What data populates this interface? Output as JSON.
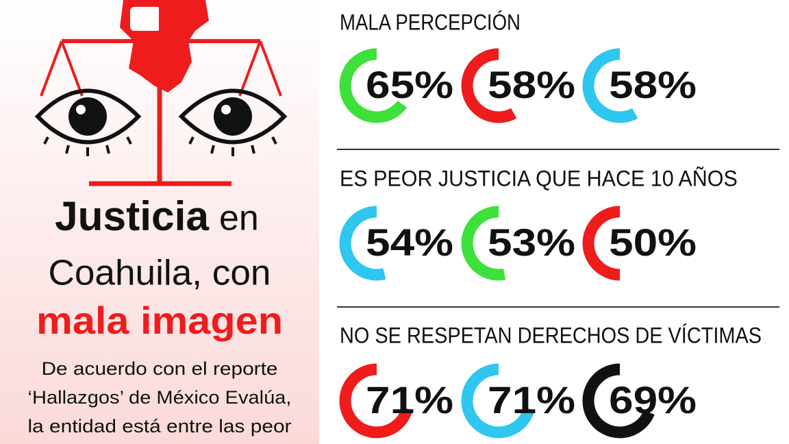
{
  "headline": {
    "part1": "Justicia",
    "part2": "en",
    "line2": "Coahuila, con",
    "line3": "mala imagen"
  },
  "body": [
    "De acuerdo con el reporte",
    "‘Hallazgos’ de México Evalúa,",
    "la entidad está entre las peor"
  ],
  "sections": [
    {
      "title": "MALA PERCEPCIÓN",
      "items": [
        {
          "value": 65,
          "label": "65%",
          "color": "#3ee03a"
        },
        {
          "value": 58,
          "label": "58%",
          "color": "#ee1c1c"
        },
        {
          "value": 58,
          "label": "58%",
          "color": "#2fc6f0"
        }
      ]
    },
    {
      "title": "ES PEOR JUSTICIA QUE HACE 10 AÑOS",
      "items": [
        {
          "value": 54,
          "label": "54%",
          "color": "#2fc6f0"
        },
        {
          "value": 53,
          "label": "53%",
          "color": "#3ee03a"
        },
        {
          "value": 50,
          "label": "50%",
          "color": "#ee1c1c"
        }
      ]
    },
    {
      "title": "NO SE RESPETAN DERECHOS DE VÍCTIMAS",
      "items": [
        {
          "value": 71,
          "label": "71%",
          "color": "#ee1c1c"
        },
        {
          "value": 71,
          "label": "71%",
          "color": "#2fc6f0"
        },
        {
          "value": 69,
          "label": "69%",
          "color": "#111111"
        }
      ]
    }
  ]
}
